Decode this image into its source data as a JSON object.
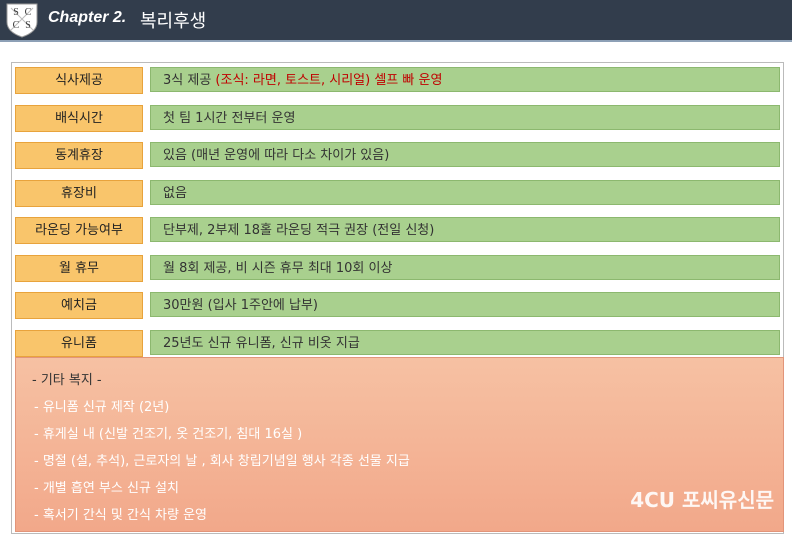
{
  "header": {
    "logo_letters": [
      "S",
      "C",
      "C",
      "S"
    ],
    "title": "Chapter 2.",
    "subtitle": "복리후생"
  },
  "table": {
    "rows": [
      {
        "label": "식사제공",
        "value": [
          "3식 제공 ",
          "(조식: 라면, 토스트, 시리얼) 셀프 빠 운영"
        ]
      },
      {
        "label": "배식시간",
        "value": [
          "첫 팀 1시간 전부터 운영"
        ]
      },
      {
        "label": "동계휴장",
        "value": [
          "있음 (매년 운영에 따라 다소 차이가 있음)"
        ]
      },
      {
        "label": "휴장비",
        "value": [
          "없음"
        ]
      },
      {
        "label": "라운딩 가능여부",
        "value": [
          "단부제, 2부제 18홀 라운딩 적극 권장 (전일 신청)"
        ]
      },
      {
        "label": "월 휴무",
        "value": [
          "월 8회 제공, 비 시즌 휴무 최대 10회 이상"
        ]
      },
      {
        "label": "예치금",
        "value": [
          "30만원 (입사 1주안에 납부)"
        ]
      },
      {
        "label": "유니폼",
        "value": [
          "25년도 신규 유니폼, 신규 비옷 지급"
        ]
      }
    ]
  },
  "other": {
    "title": "- 기타 복지 -",
    "items": [
      "- 유니폼 신규 제작 (2년)",
      "- 휴게실 내 (신발 건조기, 옷 건조기, 침대 16실 )",
      "- 명절 (설, 추석), 근로자의 날 , 회사 창립기념일 행사 각종 선물 지급",
      "- 개별 흡연 부스 신규 설치",
      "- 혹서기 간식 및 간식 차량 운영"
    ]
  },
  "watermark": {
    "logo": "4CU",
    "text": "포씨유신문"
  }
}
